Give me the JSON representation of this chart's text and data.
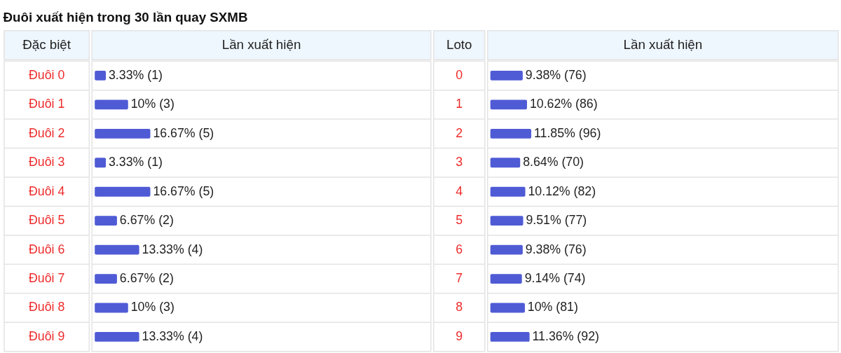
{
  "chart_data": [
    {
      "type": "bar",
      "orientation": "horizontal",
      "title": "Đuôi xuất hiện trong 30 lần quay SXMB",
      "ylabel": "Đặc biệt",
      "xlabel": "Lần xuất hiện",
      "categories": [
        "Đuôi 0",
        "Đuôi 1",
        "Đuôi 2",
        "Đuôi 3",
        "Đuôi 4",
        "Đuôi 5",
        "Đuôi 6",
        "Đuôi 7",
        "Đuôi 8",
        "Đuôi 9"
      ],
      "values": [
        3.33,
        10,
        16.67,
        3.33,
        16.67,
        6.67,
        13.33,
        6.67,
        10,
        13.33
      ],
      "value_labels": [
        "3.33% (1)",
        "10% (3)",
        "16.67% (5)",
        "3.33% (1)",
        "16.67% (5)",
        "6.67% (2)",
        "13.33% (4)",
        "6.67% (2)",
        "10% (3)",
        "13.33% (4)"
      ],
      "color": "#4f5bd5",
      "xlim": [
        0,
        100
      ],
      "tick_labels": false,
      "grid": "y"
    },
    {
      "type": "bar",
      "orientation": "horizontal",
      "ylabel": "Loto",
      "xlabel": "Lần xuất hiện",
      "categories": [
        "0",
        "1",
        "2",
        "3",
        "4",
        "5",
        "6",
        "7",
        "8",
        "9"
      ],
      "values": [
        9.38,
        10.62,
        11.85,
        8.64,
        10.12,
        9.51,
        9.38,
        9.14,
        10,
        11.36
      ],
      "value_labels": [
        "9.38% (76)",
        "10.62% (86)",
        "11.85% (96)",
        "8.64% (70)",
        "10.12% (82)",
        "9.51% (77)",
        "9.38% (76)",
        "9.14% (74)",
        "10% (81)",
        "11.36% (92)"
      ],
      "color": "#4f5bd5",
      "xlim": [
        0,
        100
      ],
      "tick_labels": false,
      "grid": "y"
    }
  ]
}
